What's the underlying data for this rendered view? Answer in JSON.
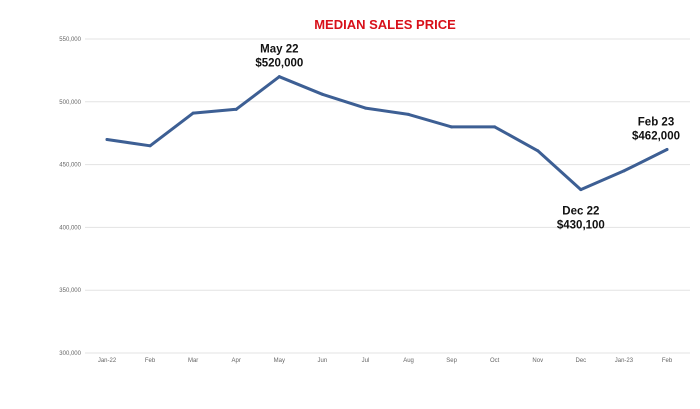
{
  "chart_data": {
    "type": "line",
    "title": "MEDIAN SALES PRICE",
    "xlabel": "",
    "ylabel": "",
    "categories": [
      "Jan-22",
      "Feb",
      "Mar",
      "Apr",
      "May",
      "Jun",
      "Jul",
      "Aug",
      "Sep",
      "Oct",
      "Nov",
      "Dec",
      "Jan-23",
      "Feb"
    ],
    "values": [
      470000,
      465000,
      491000,
      494000,
      520000,
      506000,
      495000,
      490000,
      480000,
      480000,
      461000,
      430100,
      445000,
      462000
    ],
    "ylim": [
      300000,
      550000
    ],
    "yticks": [
      300000,
      350000,
      400000,
      450000,
      500000,
      550000
    ],
    "ytick_labels": [
      "300,000",
      "350,000",
      "400,000",
      "450,000",
      "500,000",
      "550,000"
    ],
    "grid": true,
    "legend": "none",
    "line_color": "#3d5f94",
    "annotations": [
      {
        "index": 4,
        "lines": [
          "May 22",
          "$520,000"
        ],
        "position": "above"
      },
      {
        "index": 11,
        "lines": [
          "Dec  22",
          "$430,100"
        ],
        "position": "below"
      },
      {
        "index": 13,
        "lines": [
          "Feb 23",
          "$462,000"
        ],
        "position": "above"
      }
    ]
  }
}
